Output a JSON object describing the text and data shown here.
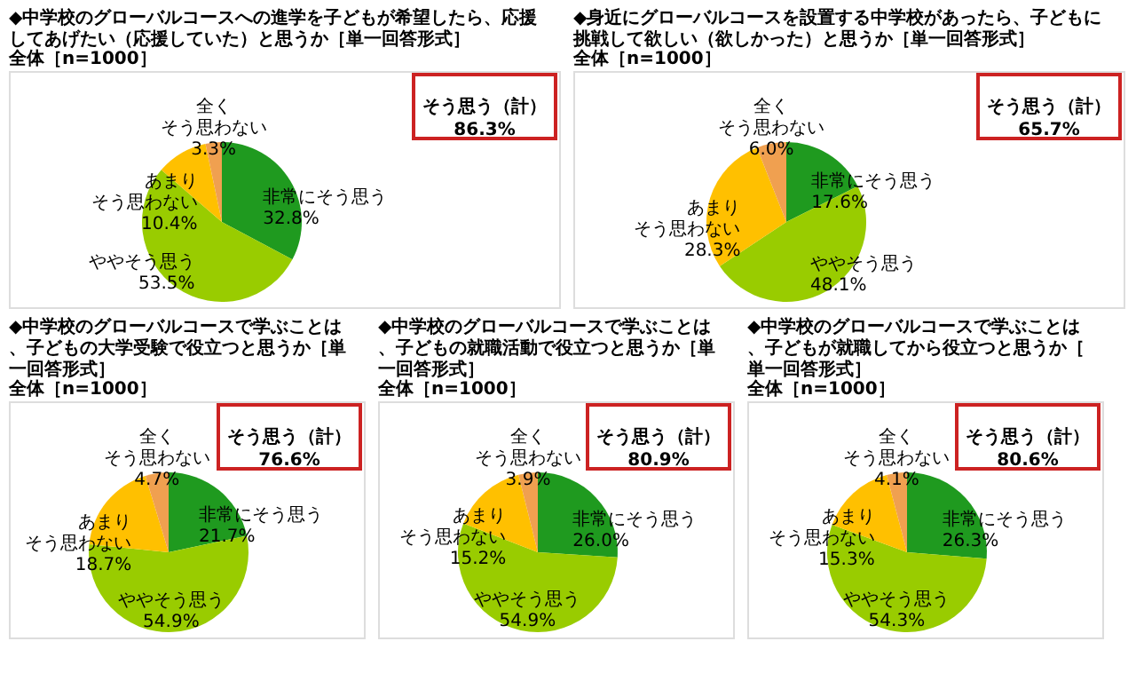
{
  "chart_data": [
    {
      "type": "pie",
      "title": "◆中学校のグローバルコースへの進学を子どもが希望したら、応援してあげたい（応援していた）と思うか［単一回答形式］",
      "subtitle": "全体［n=1000］",
      "categories": [
        "非常にそう思う",
        "ややそう思う",
        "あまりそう思わない",
        "全くそう思わない"
      ],
      "values": [
        32.8,
        53.5,
        10.4,
        3.3
      ],
      "value_labels": [
        "32.8%",
        "53.5%",
        "10.4%",
        "3.3%"
      ],
      "colors": [
        "#1f9a1f",
        "#99cc00",
        "#ffc000",
        "#f0a050"
      ],
      "annotations": [
        "そう思う（計）",
        "86.3%"
      ]
    },
    {
      "type": "pie",
      "title": "◆身近にグローバルコースを設置する中学校があったら、子どもに挑戦して欲しい（欲しかった）と思うか［単一回答形式］",
      "subtitle": "全体［n=1000］",
      "categories": [
        "非常にそう思う",
        "ややそう思う",
        "あまりそう思わない",
        "全くそう思わない"
      ],
      "values": [
        17.6,
        48.1,
        28.3,
        6.0
      ],
      "value_labels": [
        "17.6%",
        "48.1%",
        "28.3%",
        "6.0%"
      ],
      "colors": [
        "#1f9a1f",
        "#99cc00",
        "#ffc000",
        "#f0a050"
      ],
      "annotations": [
        "そう思う（計）",
        "65.7%"
      ]
    },
    {
      "type": "pie",
      "title": "◆中学校のグローバルコースで学ぶことは、子どもの大学受験で役立つと思うか［単一回答形式］",
      "subtitle": "全体［n=1000］",
      "categories": [
        "非常にそう思う",
        "ややそう思う",
        "あまりそう思わない",
        "全くそう思わない"
      ],
      "values": [
        21.7,
        54.9,
        18.7,
        4.7
      ],
      "value_labels": [
        "21.7%",
        "54.9%",
        "18.7%",
        "4.7%"
      ],
      "colors": [
        "#1f9a1f",
        "#99cc00",
        "#ffc000",
        "#f0a050"
      ],
      "annotations": [
        "そう思う（計）",
        "76.6%"
      ]
    },
    {
      "type": "pie",
      "title": "◆中学校のグローバルコースで学ぶことは、子どもの就職活動で役立つと思うか［単一回答形式］",
      "subtitle": "全体［n=1000］",
      "categories": [
        "非常にそう思う",
        "ややそう思う",
        "あまりそう思わない",
        "全くそう思わない"
      ],
      "values": [
        26.0,
        54.9,
        15.2,
        3.9
      ],
      "value_labels": [
        "26.0%",
        "54.9%",
        "15.2%",
        "3.9%"
      ],
      "colors": [
        "#1f9a1f",
        "#99cc00",
        "#ffc000",
        "#f0a050"
      ],
      "annotations": [
        "そう思う（計）",
        "80.9%"
      ]
    },
    {
      "type": "pie",
      "title": "◆中学校のグローバルコースで学ぶことは、子どもが就職してから役立つと思うか［単一回答形式］",
      "subtitle": "全体［n=1000］",
      "categories": [
        "非常にそう思う",
        "ややそう思う",
        "あまりそう思わない",
        "全くそう思わない"
      ],
      "values": [
        26.3,
        54.3,
        15.3,
        4.1
      ],
      "value_labels": [
        "26.3%",
        "54.3%",
        "15.3%",
        "4.1%"
      ],
      "colors": [
        "#1f9a1f",
        "#99cc00",
        "#ffc000",
        "#f0a050"
      ],
      "annotations": [
        "そう思う（計）",
        "80.6%"
      ]
    }
  ]
}
